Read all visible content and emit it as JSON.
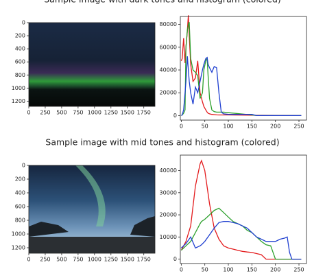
{
  "chart_data": [
    {
      "type": "image",
      "title": "Sample image with dark tones and histogram (colored)",
      "xlim": [
        0,
        1920
      ],
      "ylim": [
        1280,
        0
      ],
      "xticks": [
        0,
        250,
        500,
        750,
        1000,
        1250,
        1500,
        1750
      ],
      "yticks": [
        0,
        200,
        400,
        600,
        800,
        1000,
        1200
      ]
    },
    {
      "type": "line",
      "xlim": [
        -2,
        266
      ],
      "ylim": [
        -4000,
        87000
      ],
      "xticks": [
        0,
        50,
        100,
        150,
        200,
        250
      ],
      "yticks": [
        0,
        20000,
        40000,
        60000,
        80000
      ],
      "x": [
        0,
        2,
        5,
        8,
        10,
        13,
        15,
        17,
        20,
        25,
        30,
        35,
        40,
        45,
        48,
        52,
        55,
        57,
        60,
        65,
        70,
        75,
        80,
        85,
        90,
        100,
        150,
        160,
        200,
        255
      ],
      "series": [
        {
          "name": "r",
          "color": "#e31a1c",
          "values": [
            48000,
            50000,
            68000,
            46000,
            60000,
            75000,
            88000,
            70000,
            45000,
            30000,
            33000,
            48000,
            20000,
            12000,
            8000,
            5000,
            3000,
            2000,
            1500,
            1000,
            800,
            600,
            500,
            500,
            500,
            500,
            300,
            200,
            100,
            0
          ]
        },
        {
          "name": "g",
          "color": "#2ca02c",
          "values": [
            0,
            500,
            2000,
            5000,
            60000,
            75000,
            80000,
            82000,
            50000,
            40000,
            38000,
            35000,
            15000,
            20000,
            40000,
            48000,
            50000,
            35000,
            15000,
            5000,
            3500,
            3000,
            3000,
            3000,
            3000,
            2500,
            500,
            0,
            0,
            0
          ]
        },
        {
          "name": "b",
          "color": "#1f3fd0",
          "values": [
            0,
            500,
            5000,
            20000,
            30000,
            52000,
            40000,
            30000,
            20000,
            10000,
            25000,
            20000,
            30000,
            40000,
            45000,
            50000,
            51000,
            45000,
            42000,
            38000,
            43000,
            42000,
            20000,
            3000,
            1500,
            1000,
            1000,
            0,
            0,
            0
          ]
        }
      ]
    },
    {
      "type": "image",
      "title": "Sample image with mid tones and histogram (colored)",
      "xlim": [
        0,
        1920
      ],
      "ylim": [
        1280,
        0
      ],
      "xticks": [
        0,
        250,
        500,
        750,
        1000,
        1250,
        1500,
        1750
      ],
      "yticks": [
        0,
        200,
        400,
        600,
        800,
        1000,
        1200
      ]
    },
    {
      "type": "line",
      "xlim": [
        -2,
        266
      ],
      "ylim": [
        -2000,
        47000
      ],
      "xticks": [
        0,
        50,
        100,
        150,
        200,
        250
      ],
      "yticks": [
        0,
        10000,
        20000,
        30000,
        40000
      ],
      "x": [
        0,
        10,
        20,
        30,
        40,
        43,
        50,
        60,
        70,
        80,
        90,
        100,
        110,
        120,
        130,
        140,
        150,
        160,
        170,
        180,
        190,
        200,
        210,
        220,
        225,
        230,
        235,
        255
      ],
      "series": [
        {
          "name": "r",
          "color": "#e31a1c",
          "values": [
            4000,
            8000,
            15000,
            33000,
            43000,
            44500,
            40000,
            25000,
            14000,
            9000,
            6000,
            5000,
            4500,
            4000,
            3500,
            3200,
            3000,
            2500,
            2000,
            0,
            0,
            0,
            0,
            0,
            0,
            0,
            0,
            0
          ]
        },
        {
          "name": "g",
          "color": "#2ca02c",
          "values": [
            4000,
            6000,
            8000,
            12000,
            16000,
            17000,
            18000,
            20000,
            22000,
            23000,
            21000,
            19000,
            17000,
            16000,
            15000,
            13000,
            12000,
            10000,
            8000,
            6500,
            6000,
            0,
            0,
            0,
            0,
            0,
            0,
            0
          ]
        },
        {
          "name": "b",
          "color": "#1f3fd0",
          "values": [
            5000,
            7000,
            10000,
            5000,
            6000,
            6500,
            8000,
            11000,
            14000,
            16500,
            17000,
            17000,
            16500,
            16000,
            15000,
            14000,
            12000,
            10000,
            9000,
            8000,
            8000,
            8000,
            9000,
            9500,
            10000,
            3000,
            0,
            0
          ]
        }
      ]
    }
  ]
}
